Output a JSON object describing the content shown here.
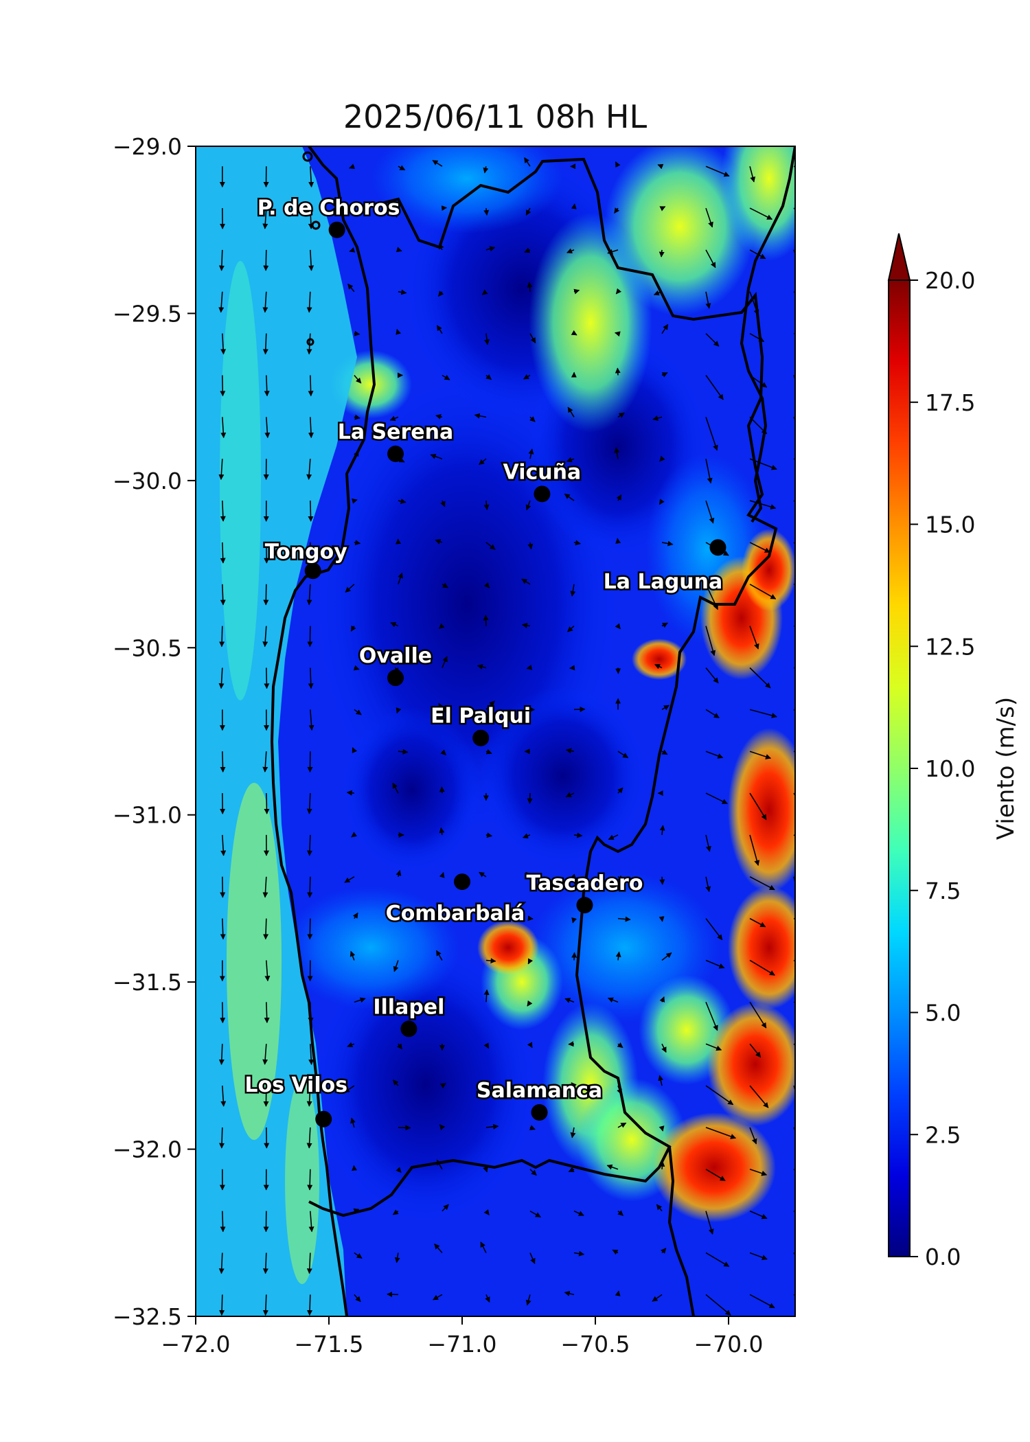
{
  "title": "2025/06/11 08h HL",
  "map": {
    "lon_range": [
      -72.0,
      -69.75
    ],
    "lat_range": [
      -32.5,
      -29.0
    ],
    "x_ticks": [
      {
        "value": -72.0,
        "label": "−72.0"
      },
      {
        "value": -71.5,
        "label": "−71.5"
      },
      {
        "value": -71.0,
        "label": "−71.0"
      },
      {
        "value": -70.5,
        "label": "−70.5"
      },
      {
        "value": -70.0,
        "label": "−70.0"
      }
    ],
    "y_ticks": [
      {
        "value": -29.0,
        "label": "−29.0"
      },
      {
        "value": -29.5,
        "label": "−29.5"
      },
      {
        "value": -30.0,
        "label": "−30.0"
      },
      {
        "value": -30.5,
        "label": "−30.5"
      },
      {
        "value": -31.0,
        "label": "−31.0"
      },
      {
        "value": -31.5,
        "label": "−31.5"
      },
      {
        "value": -32.0,
        "label": "−32.0"
      },
      {
        "value": -32.5,
        "label": "−32.5"
      }
    ],
    "cities": [
      {
        "name": "P. de Choros",
        "lon": -71.47,
        "lat": -29.25
      },
      {
        "name": "La Serena",
        "lon": -71.25,
        "lat": -29.92
      },
      {
        "name": "Vicuña",
        "lon": -70.7,
        "lat": -30.04
      },
      {
        "name": "La Laguna",
        "lon": -70.04,
        "lat": -30.2
      },
      {
        "name": "Tongoy",
        "lon": -71.56,
        "lat": -30.27
      },
      {
        "name": "Ovalle",
        "lon": -71.25,
        "lat": -30.59
      },
      {
        "name": "El Palqui",
        "lon": -70.93,
        "lat": -30.77
      },
      {
        "name": "Combarbalá",
        "lon": -71.0,
        "lat": -31.2
      },
      {
        "name": "Tascadero",
        "lon": -70.54,
        "lat": -31.27
      },
      {
        "name": "Illapel",
        "lon": -71.2,
        "lat": -31.64
      },
      {
        "name": "Los Vilos",
        "lon": -71.52,
        "lat": -31.91
      },
      {
        "name": "Salamanca",
        "lon": -70.71,
        "lat": -31.89
      }
    ]
  },
  "colorbar": {
    "label": "Viento (m/s)",
    "min": 0.0,
    "max": 20.0,
    "extend": "max",
    "ticks": [
      {
        "value": 0.0,
        "label": "0.0"
      },
      {
        "value": 2.5,
        "label": "2.5"
      },
      {
        "value": 5.0,
        "label": "5.0"
      },
      {
        "value": 7.5,
        "label": "7.5"
      },
      {
        "value": 10.0,
        "label": "10.0"
      },
      {
        "value": 12.5,
        "label": "12.5"
      },
      {
        "value": 15.0,
        "label": "15.0"
      },
      {
        "value": 17.5,
        "label": "17.5"
      },
      {
        "value": 20.0,
        "label": "20.0"
      }
    ],
    "colormap": [
      "#00007f",
      "#0000e0",
      "#0040ff",
      "#0090ff",
      "#00d8ff",
      "#40ffb8",
      "#90ff68",
      "#d8ff20",
      "#ffd800",
      "#ff9000",
      "#ff4000",
      "#e00000",
      "#7f0000"
    ]
  },
  "wind_field": {
    "units": "m/s",
    "features": [
      {
        "area": "ocean",
        "speed": 8.5,
        "direction": "south"
      },
      {
        "area": "coastal lowland",
        "speed": 6.0,
        "direction": "variable"
      },
      {
        "area": "central valleys",
        "speed": 1.5,
        "direction": "calm"
      },
      {
        "area": "Andes crest -70.0 to -69.75",
        "speed": 17.0,
        "direction": "southeast"
      }
    ]
  }
}
